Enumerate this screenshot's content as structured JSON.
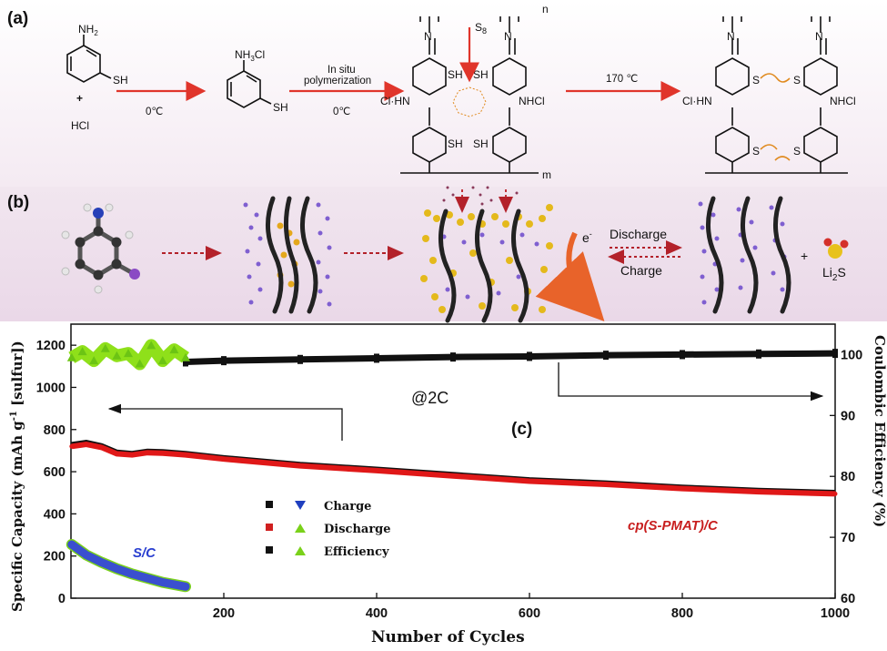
{
  "panel_a": {
    "label": "(a)",
    "reagent_1": "NH",
    "reagent_1_sub": "2",
    "reagent_1_sh": "SH",
    "plus": "+",
    "hcl": "HCl",
    "step1_temp": "0℃",
    "salt": "NH",
    "salt_sub": "3",
    "salt_cl": "Cl",
    "salt_sh": "SH",
    "step2_line1": "In situ",
    "step2_line2": "polymerization",
    "step2_temp": "0℃",
    "s8": "S",
    "s8_sub": "8",
    "poly_n": "n",
    "poly_m": "m",
    "poly_sh": "SH",
    "poly_clhn": "Cl·HN",
    "poly_nhcl": "NHCl",
    "step3_temp": "170 ℃",
    "prod_s": "S",
    "prod_clhn": "Cl·HN",
    "prod_nhcl": "NHCl"
  },
  "panel_b": {
    "label": "(b)",
    "discharge": "Discharge",
    "charge": "Charge",
    "electron": "e",
    "electron_sup": "-",
    "plus": "+",
    "product": "Li",
    "product_sub": "2",
    "product_s": "S"
  },
  "panel_c": {
    "label": "(c)",
    "rate": "@2C",
    "legend": {
      "items": [
        {
          "label": "Charge",
          "mark_colors": [
            "#111111",
            "#1f3fbf"
          ],
          "shapes": [
            "square",
            "triangle-down"
          ]
        },
        {
          "label": "Discharge",
          "mark_colors": [
            "#d01f1f",
            "#7ad11a"
          ],
          "shapes": [
            "square",
            "triangle-up"
          ]
        },
        {
          "label": "Efficiency",
          "mark_colors": [
            "#111111",
            "#7ad11a"
          ],
          "shapes": [
            "square",
            "triangle-up"
          ]
        }
      ]
    },
    "series_labels": {
      "sc": "S/C",
      "pmat": "cp(S-PMAT)/C"
    },
    "colors": {
      "discharge_line": "#e01818",
      "charge_line": "#111111",
      "sc_line": "#3a4fcf",
      "sc_edge": "#7ad11a",
      "sc_eff": "#8fe01a",
      "eff_line": "#111111"
    }
  },
  "chart_data": {
    "type": "scatter",
    "xlabel": "Number of Cycles",
    "ylabel_left": "Specific Capacity (mAh g",
    "ylabel_left_sup": "-1",
    "ylabel_left_tail": " [sulfur])",
    "ylabel_right": "Coulombic Efficiency (%)",
    "xlim": [
      0,
      1000
    ],
    "ylim_left": [
      0,
      1300
    ],
    "ylim_right": [
      60,
      105
    ],
    "xticks": [
      200,
      400,
      600,
      800,
      1000
    ],
    "yticks_left": [
      0,
      200,
      400,
      600,
      800,
      1000,
      1200
    ],
    "yticks_right": [
      60,
      70,
      80,
      90,
      100
    ],
    "series": [
      {
        "name": "cp(S-PMAT)/C Discharge",
        "axis": "left",
        "x": [
          1,
          20,
          40,
          60,
          80,
          100,
          120,
          150,
          200,
          300,
          400,
          500,
          600,
          700,
          800,
          900,
          1000
        ],
        "y": [
          720,
          730,
          715,
          685,
          680,
          690,
          688,
          680,
          660,
          628,
          605,
          580,
          555,
          540,
          520,
          505,
          495
        ]
      },
      {
        "name": "cp(S-PMAT)/C Charge",
        "axis": "left",
        "x": [
          1,
          20,
          40,
          60,
          80,
          100,
          120,
          150,
          200,
          300,
          400,
          500,
          600,
          700,
          800,
          900,
          1000
        ],
        "y": [
          728,
          738,
          722,
          692,
          686,
          696,
          694,
          686,
          666,
          634,
          611,
          586,
          561,
          546,
          526,
          511,
          501
        ]
      },
      {
        "name": "cp(S-PMAT)/C Efficiency",
        "axis": "right",
        "x": [
          150,
          200,
          300,
          400,
          500,
          600,
          700,
          800,
          900,
          1000
        ],
        "y": [
          98.8,
          99.0,
          99.2,
          99.4,
          99.6,
          99.7,
          99.9,
          100.0,
          100.1,
          100.2
        ]
      },
      {
        "name": "S/C Charge/Discharge",
        "axis": "left",
        "x": [
          1,
          20,
          40,
          60,
          80,
          100,
          120,
          150
        ],
        "y": [
          255,
          205,
          170,
          140,
          115,
          95,
          75,
          55
        ]
      },
      {
        "name": "S/C Efficiency",
        "axis": "right",
        "x": [
          1,
          15,
          30,
          45,
          60,
          75,
          90,
          105,
          120,
          135,
          150
        ],
        "y": [
          99.5,
          100.5,
          99.0,
          101.0,
          99.8,
          100.2,
          98.5,
          101.5,
          99.0,
          100.8,
          99.5
        ]
      }
    ]
  }
}
